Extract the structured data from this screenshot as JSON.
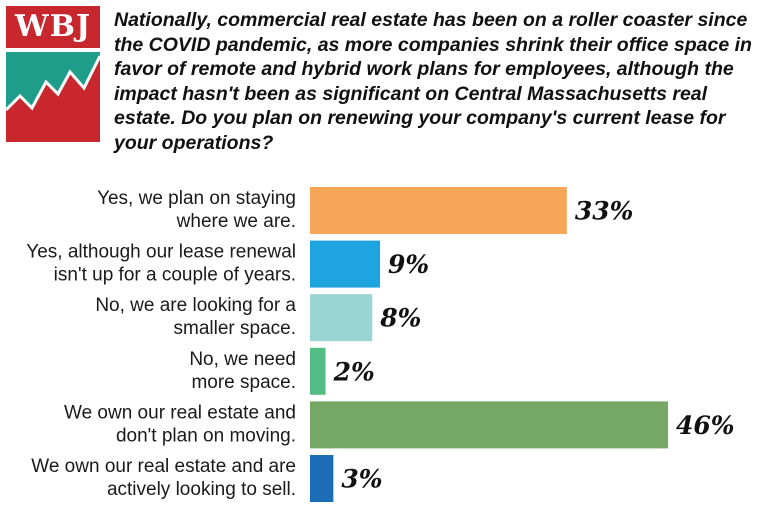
{
  "logo": {
    "text": "WBJ",
    "colors": {
      "red": "#c8272d",
      "teal": "#1e9e8a",
      "white": "#ffffff"
    }
  },
  "chart_data": {
    "type": "bar",
    "orientation": "horizontal",
    "title": "Nationally, commercial real estate has been on a roller coaster since the COVID pandemic, as more companies shrink their office space in favor of remote and hybrid work plans for employees, although the impact hasn't been as significant on Central Massachusetts real estate. Do you plan on renewing your company's current lease for your operations?",
    "categories": [
      [
        "Yes, we plan on staying",
        "where we are."
      ],
      [
        "Yes, although our lease renewal",
        "isn't up for a couple of years."
      ],
      [
        "No, we are looking for a",
        "smaller space."
      ],
      [
        "No, we need",
        "more space."
      ],
      [
        "We own our real estate and",
        "don't plan on moving."
      ],
      [
        "We own our real estate and are",
        "actively looking to sell."
      ]
    ],
    "values": [
      33,
      9,
      8,
      2,
      46,
      3
    ],
    "value_labels": [
      "33%",
      "9%",
      "8%",
      "2%",
      "46%",
      "3%"
    ],
    "colors": [
      "#f5a656",
      "#1ea5e0",
      "#98d5d3",
      "#52bd85",
      "#76a865",
      "#1c6db5"
    ],
    "unit": "%",
    "xlim": [
      0,
      46
    ]
  }
}
